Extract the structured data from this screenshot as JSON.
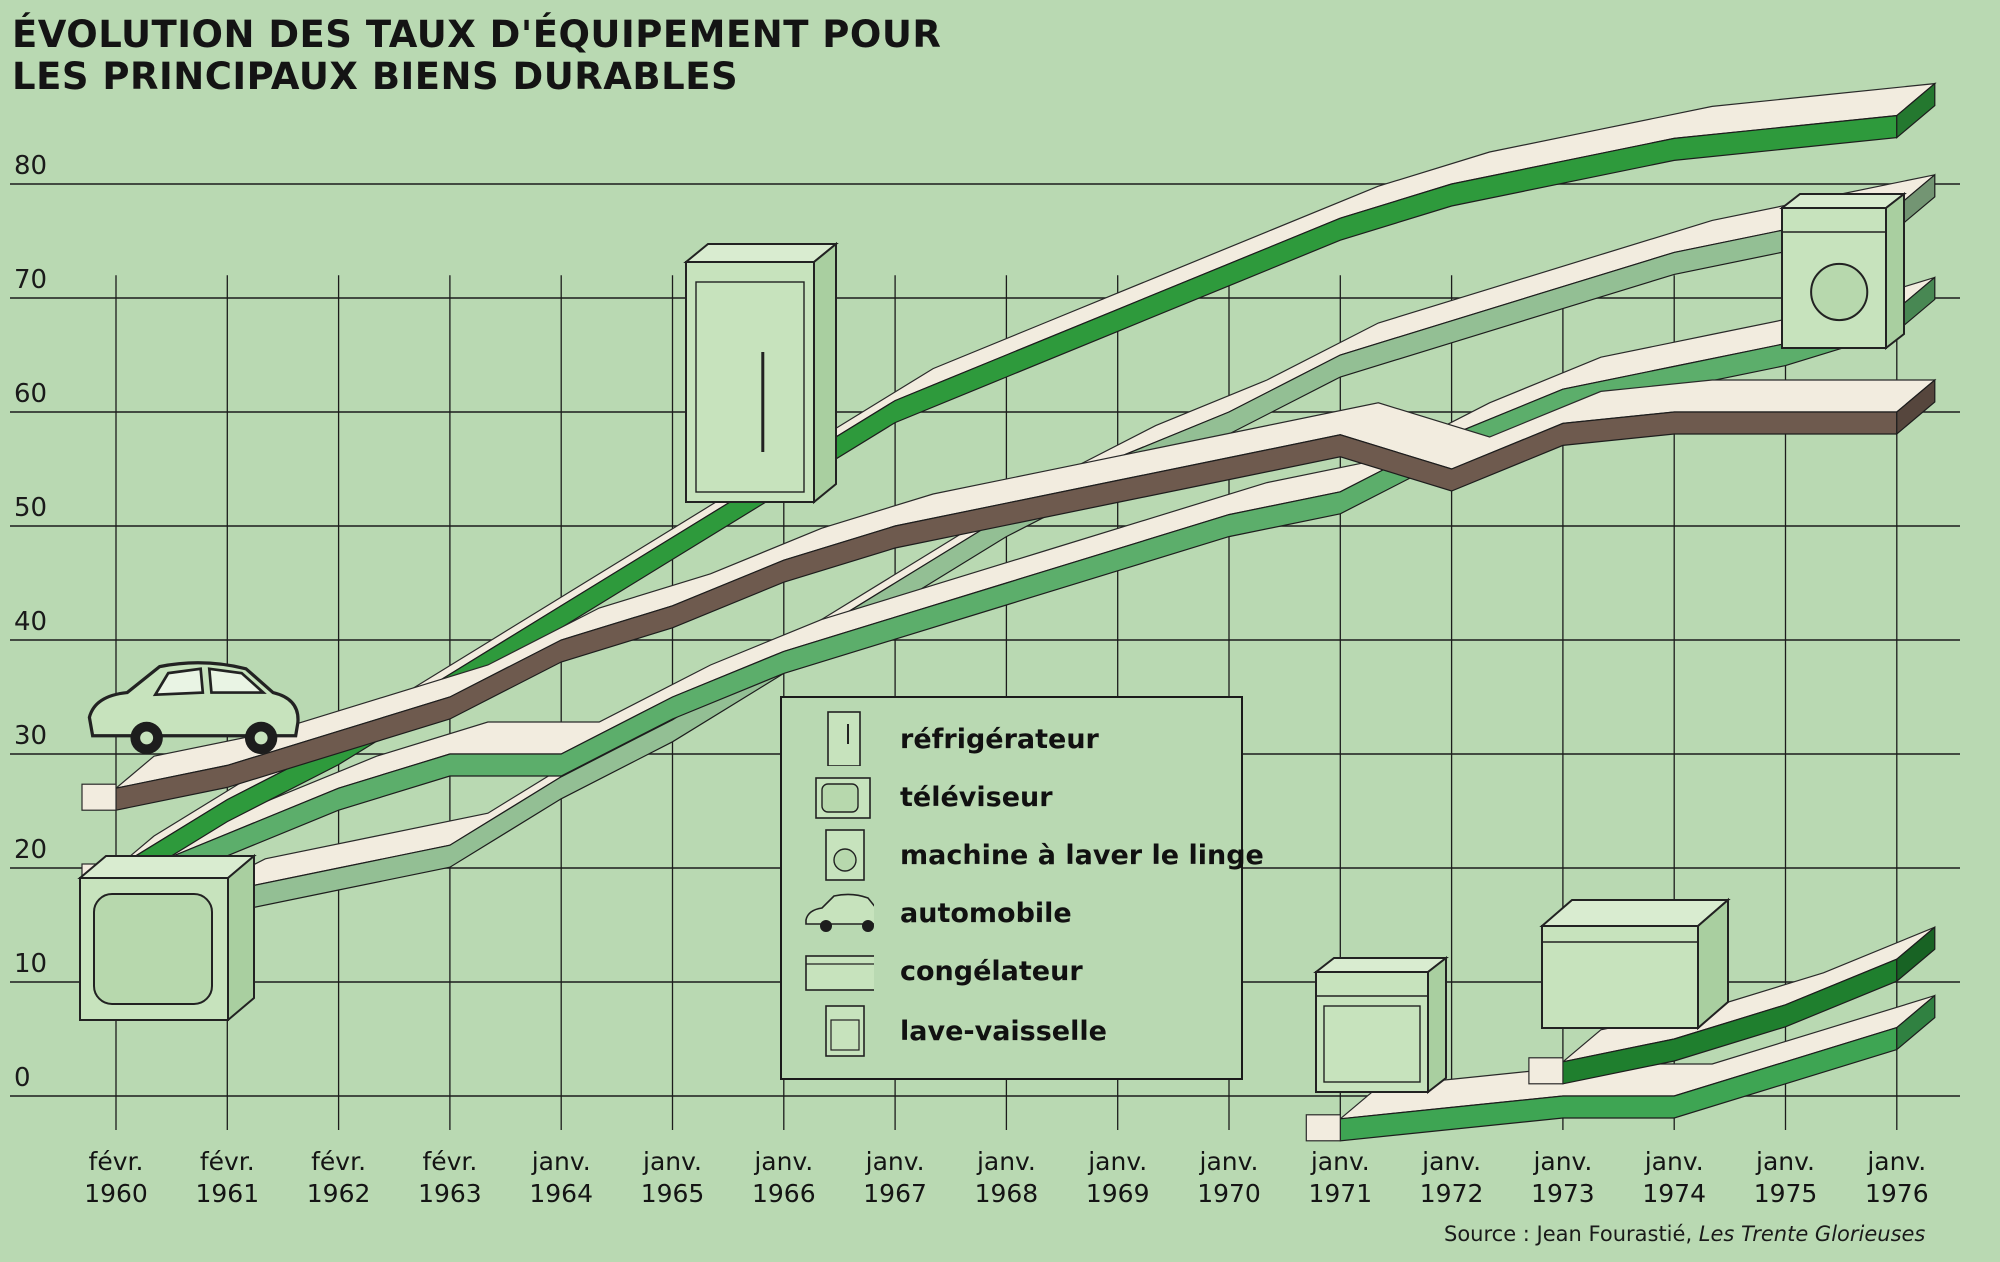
{
  "title": [
    "ÉVOLUTION DES TAUX D'ÉQUIPEMENT POUR",
    "LES PRINCIPAUX BIENS DURABLES"
  ],
  "source": {
    "prefix": "Source : Jean Fourastié, ",
    "work": "Les Trente Glorieuses"
  },
  "chart_data": {
    "type": "line",
    "title": "ÉVOLUTION DES TAUX D'ÉQUIPEMENT POUR LES PRINCIPAUX BIENS DURABLES",
    "xlabel": "",
    "ylabel": "",
    "ylim": [
      0,
      85
    ],
    "yticks": [
      0,
      10,
      20,
      30,
      40,
      50,
      60,
      70,
      80
    ],
    "grid": true,
    "legend_position": "center",
    "categories": [
      [
        "févr.",
        "1960"
      ],
      [
        "févr.",
        "1961"
      ],
      [
        "févr.",
        "1962"
      ],
      [
        "févr.",
        "1963"
      ],
      [
        "janv.",
        "1964"
      ],
      [
        "janv.",
        "1965"
      ],
      [
        "janv.",
        "1966"
      ],
      [
        "janv.",
        "1967"
      ],
      [
        "janv.",
        "1968"
      ],
      [
        "janv.",
        "1969"
      ],
      [
        "janv.",
        "1970"
      ],
      [
        "janv.",
        "1971"
      ],
      [
        "janv.",
        "1972"
      ],
      [
        "janv.",
        "1973"
      ],
      [
        "janv.",
        "1974"
      ],
      [
        "janv.",
        "1975"
      ],
      [
        "janv.",
        "1976"
      ]
    ],
    "series": [
      {
        "name": "réfrigérateur",
        "color": "#2e9a3c",
        "icon": "refrigerator-icon",
        "values": [
          20,
          26,
          31,
          37,
          43,
          49,
          55,
          61,
          65,
          69,
          73,
          77,
          80,
          82,
          84,
          85,
          86
        ]
      },
      {
        "name": "téléviseur",
        "color": "#5cae6b",
        "icon": "television-icon",
        "values": [
          19,
          23,
          27,
          30,
          30,
          35,
          39,
          42,
          45,
          48,
          51,
          53,
          58,
          62,
          64,
          66,
          69
        ]
      },
      {
        "name": "machine à laver le linge",
        "color": "#93bf94",
        "icon": "washing-machine-icon",
        "values": [
          13,
          18,
          20,
          22,
          28,
          33,
          39,
          45,
          51,
          56,
          60,
          65,
          68,
          71,
          74,
          76,
          78
        ]
      },
      {
        "name": "automobile",
        "color": "#6e5a4e",
        "icon": "car-icon",
        "values": [
          27,
          29,
          32,
          35,
          40,
          43,
          47,
          50,
          52,
          54,
          56,
          58,
          55,
          59,
          60,
          60,
          60
        ]
      },
      {
        "name": "congélateur",
        "color": "#1f7f2e",
        "icon": "freezer-icon",
        "values": [
          null,
          null,
          null,
          null,
          null,
          null,
          null,
          null,
          null,
          null,
          null,
          null,
          null,
          3,
          5,
          8,
          12
        ]
      },
      {
        "name": "lave-vaisselle",
        "color": "#3ea553",
        "icon": "dishwasher-icon",
        "values": [
          null,
          null,
          null,
          null,
          null,
          null,
          null,
          null,
          null,
          null,
          null,
          -2,
          -1,
          0,
          0,
          3,
          6
        ]
      }
    ]
  }
}
